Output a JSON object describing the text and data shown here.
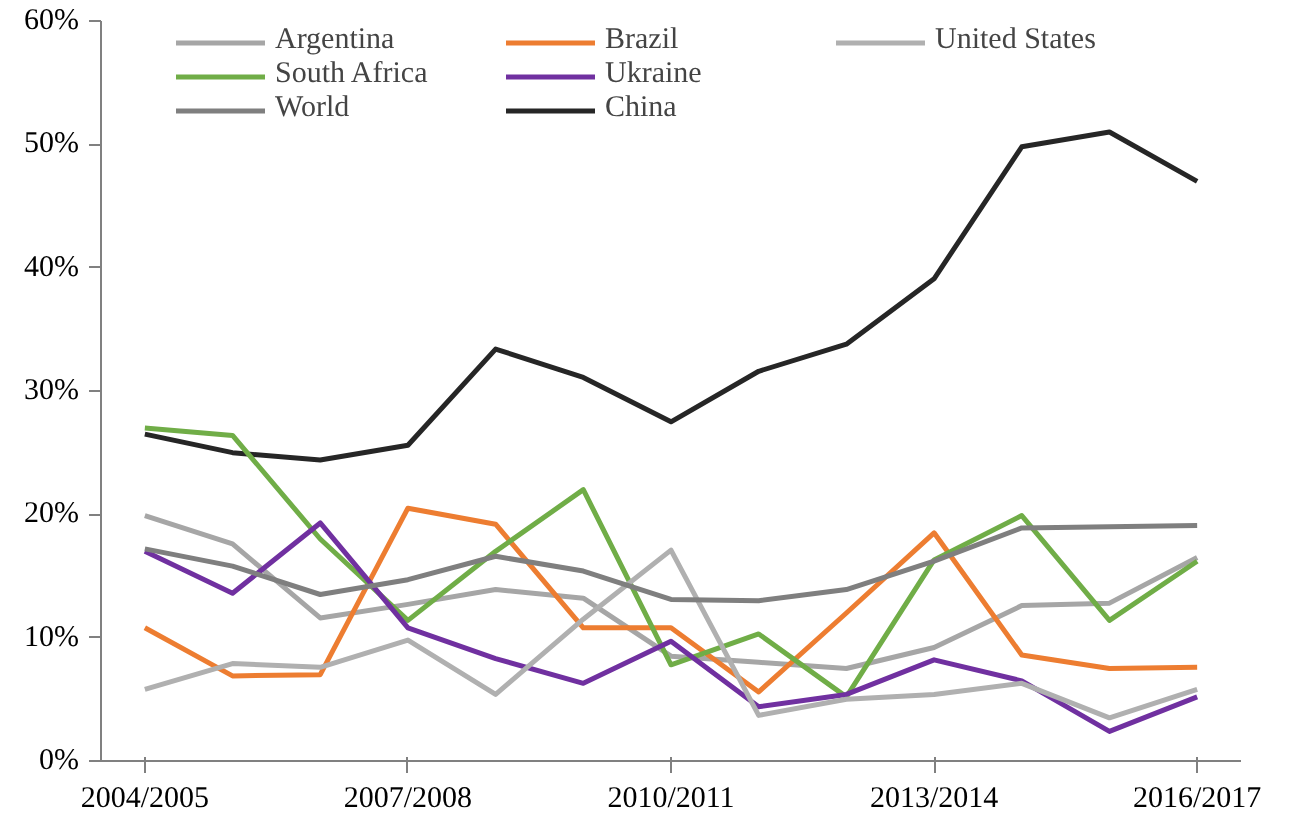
{
  "chart_data": {
    "type": "line",
    "categories": [
      "2004/2005",
      null,
      null,
      "2007/2008",
      null,
      null,
      "2010/2011",
      null,
      null,
      "2013/2014",
      null,
      null,
      "2016/2017"
    ],
    "series": [
      {
        "name": "Argentina",
        "color": "#a6a6a6",
        "values": [
          19.9,
          17.6,
          11.6,
          12.7,
          13.9,
          13.2,
          8.5,
          8.0,
          7.5,
          9.2,
          12.6,
          12.8,
          16.5
        ]
      },
      {
        "name": "Brazil",
        "color": "#ed7d31",
        "values": [
          10.8,
          6.9,
          7.0,
          20.5,
          19.2,
          10.8,
          10.8,
          5.6,
          12.0,
          18.5,
          8.6,
          7.5,
          7.6
        ]
      },
      {
        "name": "China",
        "color": "#262626",
        "values": [
          26.5,
          25.0,
          24.4,
          25.6,
          33.4,
          31.1,
          27.5,
          31.6,
          33.8,
          39.1,
          49.8,
          51.0,
          47.0
        ]
      },
      {
        "name": "South Africa",
        "color": "#70ad47",
        "values": [
          27.0,
          26.4,
          18.0,
          11.4,
          17.0,
          22.0,
          7.8,
          10.3,
          5.2,
          16.3,
          19.9,
          11.4,
          16.2
        ]
      },
      {
        "name": "Ukraine",
        "color": "#7030a0",
        "values": [
          17.0,
          13.6,
          19.3,
          10.8,
          8.3,
          6.3,
          9.7,
          4.4,
          5.4,
          8.2,
          6.5,
          2.4,
          5.2
        ]
      },
      {
        "name": "United States",
        "color": "#b0b0b0",
        "values": [
          5.8,
          7.9,
          7.6,
          9.8,
          5.4,
          11.5,
          17.1,
          3.7,
          5.0,
          5.4,
          6.3,
          3.5,
          5.8
        ]
      },
      {
        "name": "World",
        "color": "#7f7f7f",
        "values": [
          17.2,
          15.8,
          13.5,
          14.7,
          16.6,
          15.4,
          13.1,
          13.0,
          13.9,
          16.2,
          18.9,
          19.0,
          19.1
        ]
      }
    ],
    "ylim": [
      0,
      60
    ],
    "yticks": [
      {
        "value": 0,
        "label": "0%"
      },
      {
        "value": 10,
        "label": "10%"
      },
      {
        "value": 20,
        "label": "20%"
      },
      {
        "value": 30,
        "label": "30%"
      },
      {
        "value": 40,
        "label": "40%"
      },
      {
        "value": 50,
        "label": "50%"
      },
      {
        "value": 60,
        "label": "60%"
      }
    ],
    "grid": false,
    "legend": "top",
    "marker": "none",
    "line_style": "solid"
  }
}
